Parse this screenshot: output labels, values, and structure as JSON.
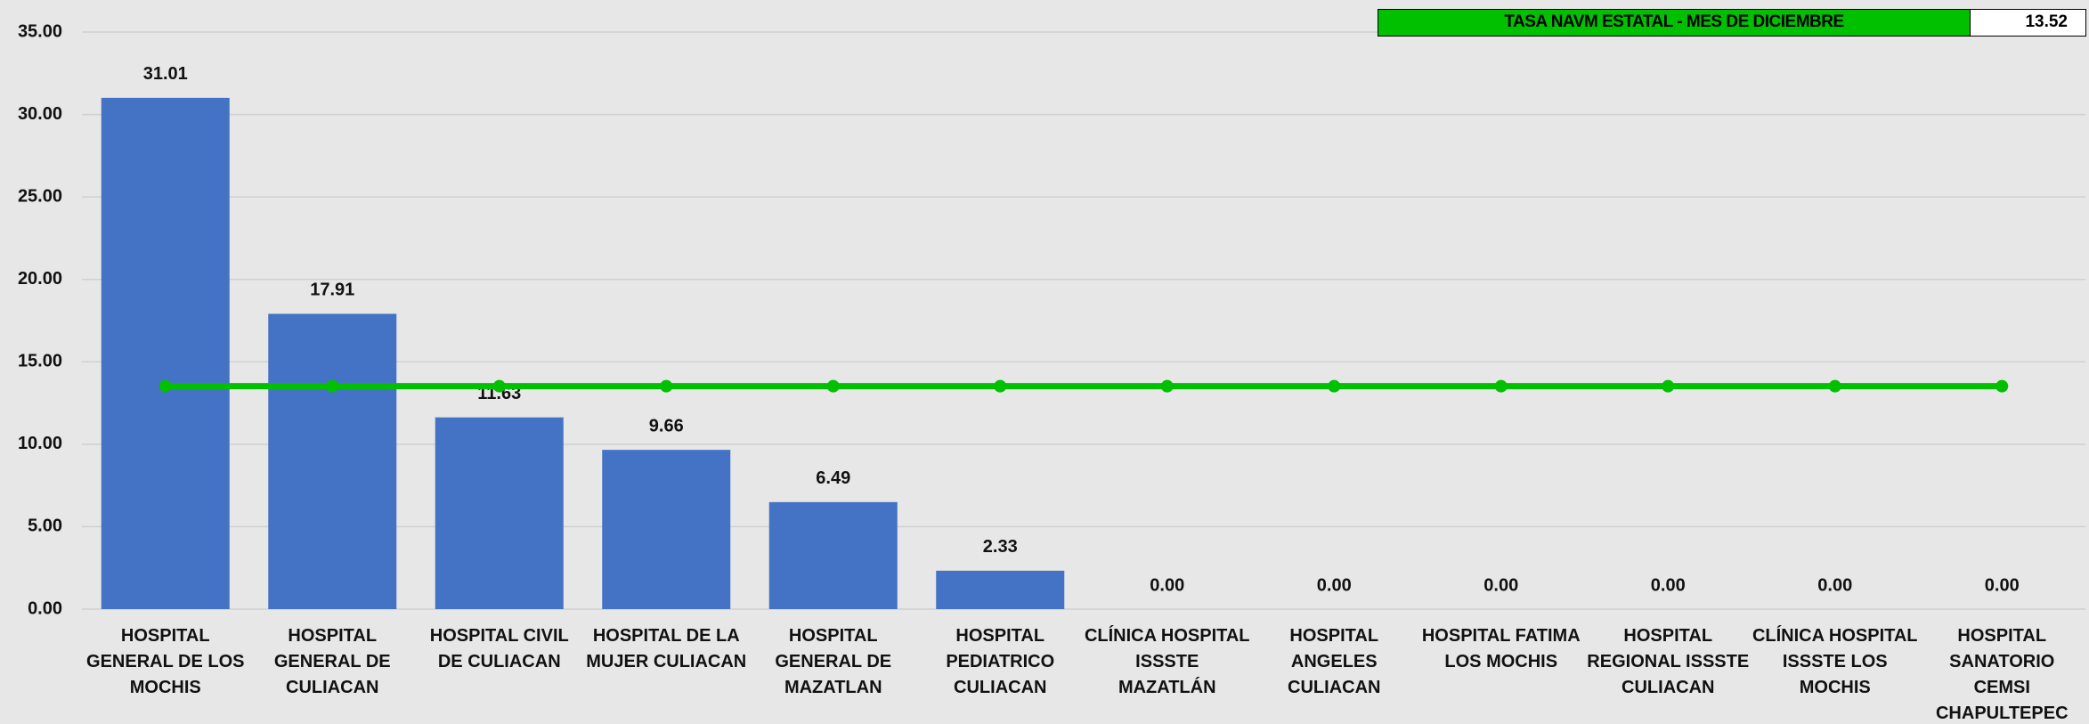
{
  "chart_data": {
    "type": "bar",
    "categories": [
      "HOSPITAL GENERAL DE LOS MOCHIS",
      "HOSPITAL GENERAL DE CULIACAN",
      "HOSPITAL CIVIL DE CULIACAN",
      "HOSPITAL DE LA MUJER CULIACAN",
      "HOSPITAL GENERAL DE MAZATLAN",
      "HOSPITAL PEDIATRICO CULIACAN",
      "CLÍNICA HOSPITAL ISSSTE MAZATLÁN",
      "HOSPITAL ANGELES CULIACAN",
      "HOSPITAL FATIMA LOS MOCHIS",
      "HOSPITAL REGIONAL ISSSTE CULIACAN",
      "CLÍNICA HOSPITAL ISSSTE LOS MOCHIS",
      "HOSPITAL SANATORIO CEMSI CHAPULTEPEC"
    ],
    "series": [
      {
        "type": "bar",
        "color": "#4472c4",
        "values": [
          31.01,
          17.91,
          11.63,
          9.66,
          6.49,
          2.33,
          0,
          0,
          0,
          0,
          0,
          0
        ],
        "value_labels": [
          "31.01",
          "17.91",
          "11.63",
          "9.66",
          "6.49",
          "2.33",
          "0.00",
          "0.00",
          "0.00",
          "0.00",
          "0.00",
          "0.00"
        ]
      },
      {
        "type": "line",
        "name": "TASA NAVM  ESTATAL - MES DE DICIEMBRE",
        "color": "#00c000",
        "values": [
          13.52,
          13.52,
          13.52,
          13.52,
          13.52,
          13.52,
          13.52,
          13.52,
          13.52,
          13.52,
          13.52,
          13.52
        ]
      }
    ],
    "ylim": [
      0,
      35
    ],
    "yticks": [
      {
        "value": 0,
        "label": "0.00"
      },
      {
        "value": 5,
        "label": "5.00"
      },
      {
        "value": 10,
        "label": "10.00"
      },
      {
        "value": 15,
        "label": "15.00"
      },
      {
        "value": 20,
        "label": "20.00"
      },
      {
        "value": 25,
        "label": "25.00"
      },
      {
        "value": 30,
        "label": "30.00"
      },
      {
        "value": 35,
        "label": "35.00"
      }
    ],
    "grid": true
  }
}
